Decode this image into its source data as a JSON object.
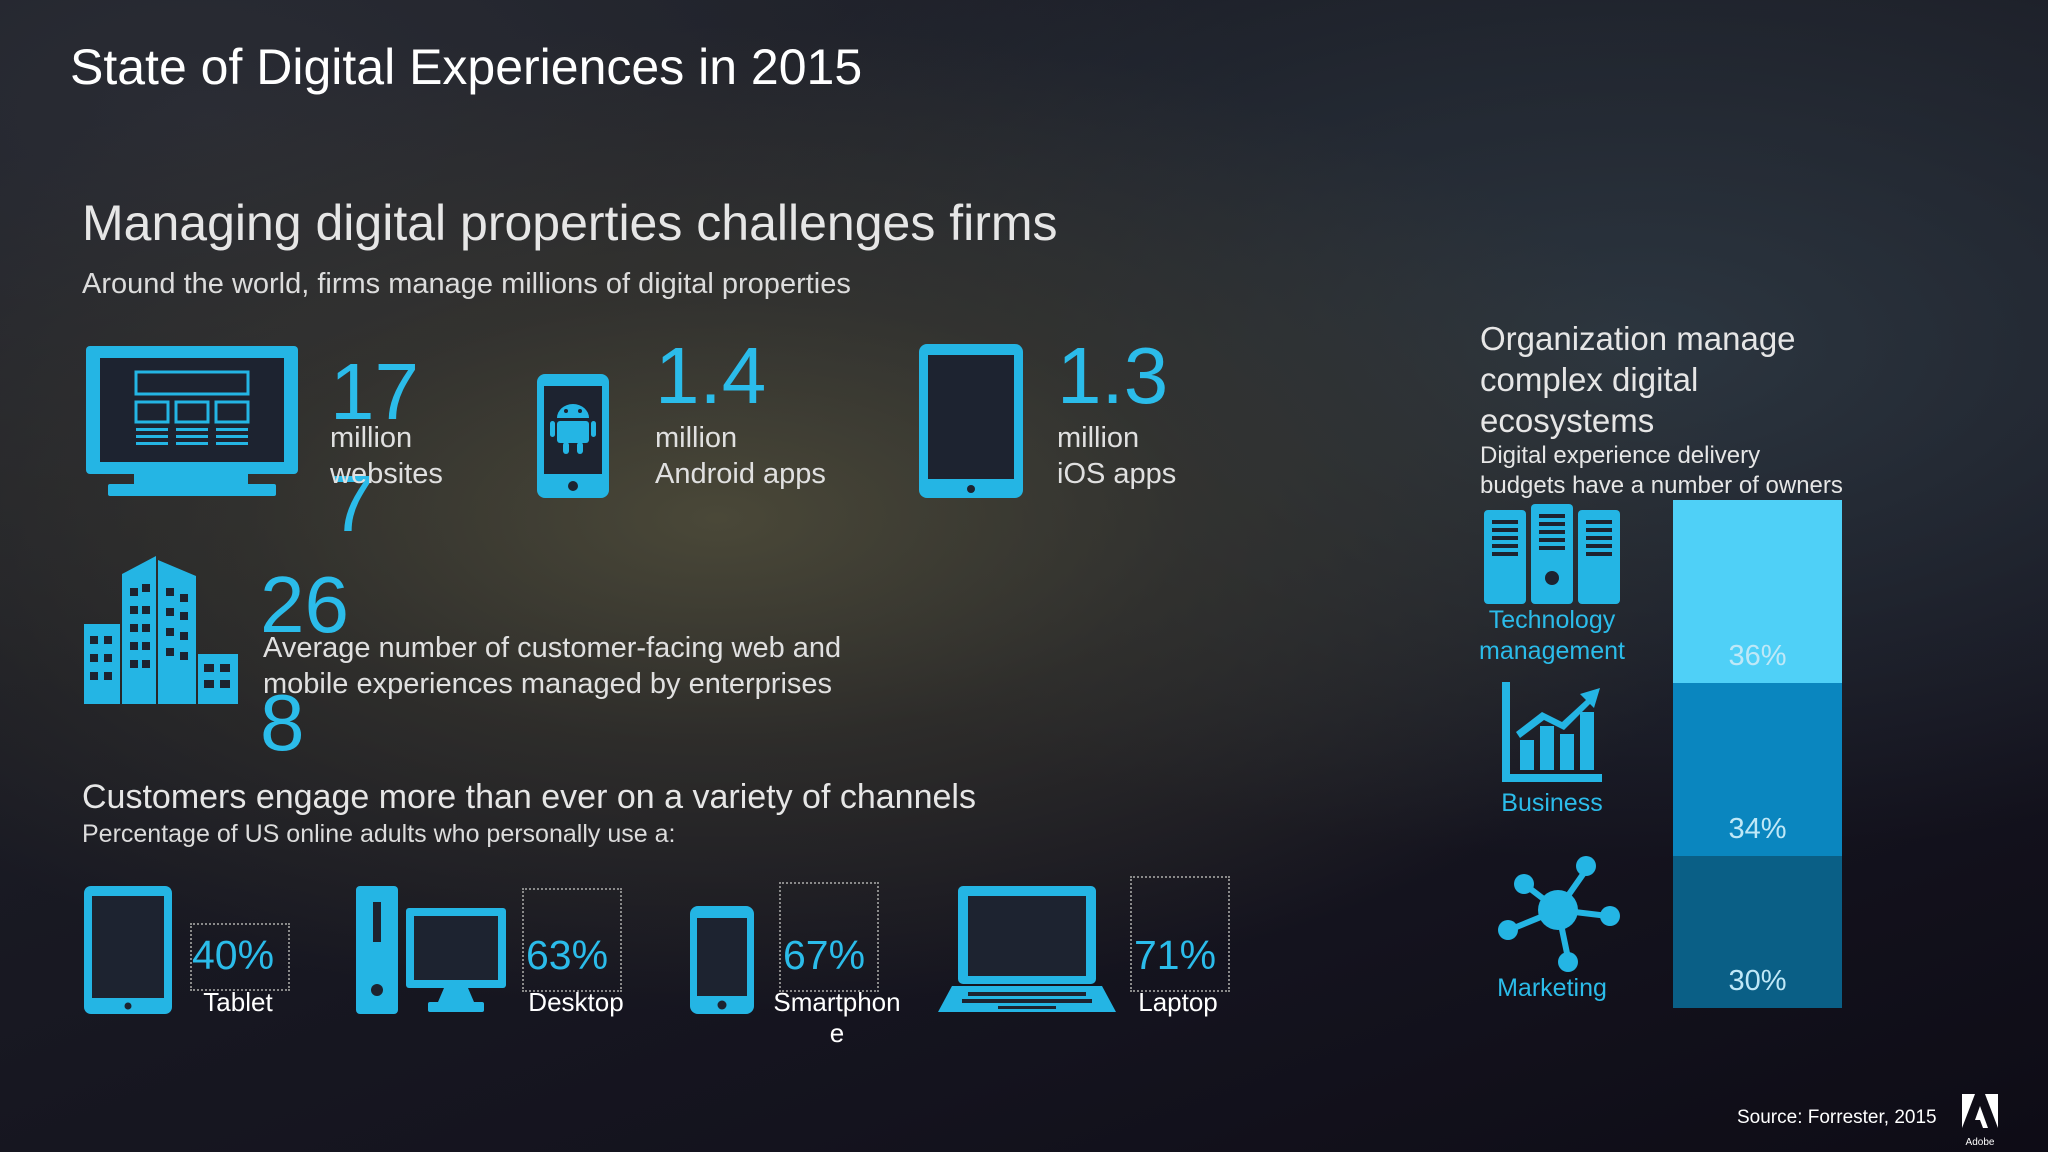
{
  "title": "State of Digital Experiences in 2015",
  "section1": {
    "heading": "Managing digital properties challenges firms",
    "subheading": "Around the world, firms manage millions of digital properties"
  },
  "stats": [
    {
      "icon": "monitor-website-icon",
      "number": "17\n7",
      "label": "million\nwebsites"
    },
    {
      "icon": "android-phone-icon",
      "number": "1.4",
      "label": "million\nAndroid apps"
    },
    {
      "icon": "tablet-icon",
      "number": "1.3",
      "label": "million\niOS apps"
    },
    {
      "icon": "office-buildings-icon",
      "number": "26\n8",
      "label": "Average number of customer-facing web and\nmobile experiences managed by enterprises"
    }
  ],
  "section2": {
    "heading": "Customers engage more than ever on a variety of channels",
    "subheading": "Percentage of US online adults who personally use a:"
  },
  "channels": [
    {
      "icon": "tablet-icon",
      "percent": "40%",
      "label": "Tablet"
    },
    {
      "icon": "desktop-computer-icon",
      "percent": "63%",
      "label": "Desktop"
    },
    {
      "icon": "smartphone-icon",
      "percent": "67%",
      "label": "Smartphon\ne"
    },
    {
      "icon": "laptop-icon",
      "percent": "71%",
      "label": "Laptop"
    }
  ],
  "organization": {
    "heading": "Organization manage\ncomplex digital\necosystems",
    "subheading": "Digital experience delivery\nbudgets have a number of owners",
    "owners": [
      {
        "icon": "server-racks-icon",
        "label": "Technology\nmanagement",
        "percent": "36%",
        "value": 36,
        "color": "#4fd0f7"
      },
      {
        "icon": "growth-chart-icon",
        "label": "Business",
        "percent": "34%",
        "value": 34,
        "color": "#0a86bf"
      },
      {
        "icon": "network-hub-icon",
        "label": "Marketing",
        "percent": "30%",
        "value": 30,
        "color": "#0a5f86"
      }
    ]
  },
  "source": "Source: Forrester, 2015",
  "logo_text": "Adobe",
  "colors": {
    "accent": "#2bbcea",
    "bar_light": "#4fd0f7",
    "bar_mid": "#0a86bf",
    "bar_dark": "#0a5f86"
  }
}
